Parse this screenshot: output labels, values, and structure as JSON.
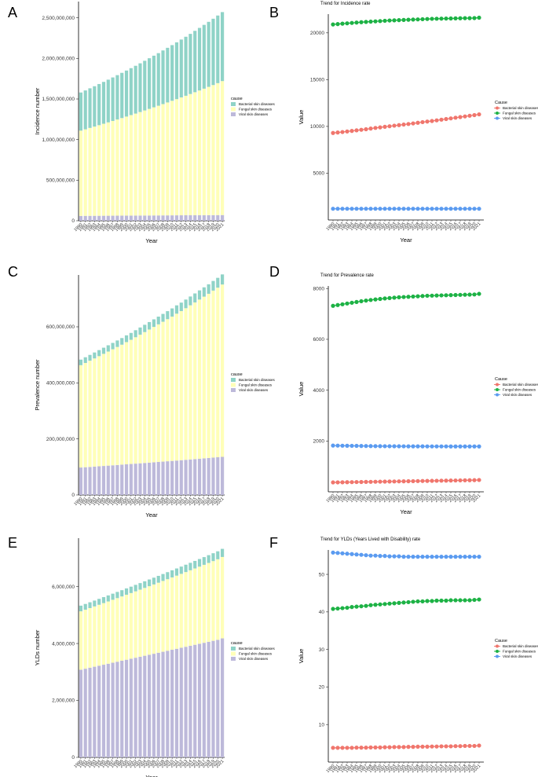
{
  "years": [
    "1990",
    "1991",
    "1992",
    "1993",
    "1994",
    "1995",
    "1996",
    "1997",
    "1998",
    "1999",
    "2000",
    "2001",
    "2002",
    "2003",
    "2004",
    "2005",
    "2006",
    "2007",
    "2008",
    "2009",
    "2010",
    "2011",
    "2012",
    "2013",
    "2014",
    "2015",
    "2016",
    "2017",
    "2018",
    "2019",
    "2020",
    "2021"
  ],
  "colors": {
    "bar": {
      "Bacterial skin diseases": "#8fd3c7",
      "Fungal skin diseases": "#ffffb8",
      "Viral skin diseases": "#bdb9da"
    },
    "line": {
      "Bacterial skin diseases": "#f0766d",
      "Fungal skin diseases": "#1db245",
      "Viral skin diseases": "#5b9bf0"
    }
  },
  "chart_data": [
    {
      "panel": "A",
      "type": "bar",
      "stacked": true,
      "ylabel": "Incidence number",
      "xlabel": "Year",
      "legend_title": "cause",
      "ylim": [
        0,
        2700000000
      ],
      "yticks": [
        0,
        500000000,
        1000000000,
        1500000000,
        2000000000,
        2500000000
      ],
      "ytick_labels": [
        "0",
        "500,000,000",
        "1,000,000,000",
        "1,500,000,000",
        "2,000,000,000",
        "2,500,000,000"
      ],
      "series": [
        {
          "name": "Viral skin diseases",
          "values": [
            60000000,
            60300000,
            60700000,
            61000000,
            61300000,
            61700000,
            62000000,
            62300000,
            62700000,
            63000000,
            63400000,
            63700000,
            64000000,
            64400000,
            64700000,
            65000000,
            65400000,
            65700000,
            66100000,
            66400000,
            66700000,
            67100000,
            67400000,
            67700000,
            68100000,
            68400000,
            68700000,
            69100000,
            69400000,
            69700000,
            70100000,
            70400000
          ]
        },
        {
          "name": "Fungal skin diseases",
          "values": [
            1050000000,
            1066000000,
            1083000000,
            1099000000,
            1116000000,
            1133000000,
            1150000000,
            1167000000,
            1185000000,
            1202000000,
            1220000000,
            1238000000,
            1256000000,
            1275000000,
            1294000000,
            1313000000,
            1332000000,
            1351000000,
            1371000000,
            1391000000,
            1411000000,
            1431000000,
            1452000000,
            1472000000,
            1493000000,
            1515000000,
            1536000000,
            1558000000,
            1580000000,
            1602000000,
            1625000000,
            1650000000
          ]
        },
        {
          "name": "Bacterial skin diseases",
          "values": [
            470000000,
            479000000,
            488000000,
            497000000,
            507000000,
            516000000,
            526000000,
            536000000,
            546000000,
            557000000,
            567000000,
            578000000,
            589000000,
            600000000,
            612000000,
            624000000,
            636000000,
            648000000,
            661000000,
            673000000,
            686000000,
            700000000,
            713000000,
            727000000,
            741000000,
            756000000,
            771000000,
            786000000,
            801000000,
            817000000,
            833000000,
            850000000
          ]
        }
      ]
    },
    {
      "panel": "B",
      "type": "line",
      "title": "Trend for Incidence rate",
      "ylabel": "Value",
      "xlabel": "Year",
      "legend_title": "Cause",
      "ylim": [
        0,
        22000
      ],
      "yticks": [
        5000,
        10000,
        15000,
        20000
      ],
      "ytick_labels": [
        "5000",
        "10000",
        "15000",
        "20000"
      ],
      "series": [
        {
          "name": "Bacterial skin diseases",
          "values": [
            9300,
            9350,
            9400,
            9460,
            9520,
            9580,
            9640,
            9700,
            9770,
            9840,
            9900,
            9960,
            10020,
            10080,
            10140,
            10200,
            10260,
            10320,
            10390,
            10460,
            10520,
            10580,
            10650,
            10720,
            10790,
            10860,
            10930,
            11000,
            11070,
            11140,
            11210,
            11290
          ]
        },
        {
          "name": "Fungal skin diseases",
          "values": [
            20900,
            20940,
            20980,
            21020,
            21060,
            21100,
            21140,
            21170,
            21200,
            21230,
            21260,
            21290,
            21320,
            21340,
            21360,
            21380,
            21400,
            21420,
            21440,
            21460,
            21480,
            21500,
            21510,
            21520,
            21530,
            21540,
            21550,
            21560,
            21570,
            21570,
            21580,
            21620
          ]
        },
        {
          "name": "Viral skin diseases",
          "values": [
            1200,
            1200,
            1200,
            1200,
            1200,
            1200,
            1200,
            1200,
            1200,
            1200,
            1200,
            1200,
            1200,
            1200,
            1200,
            1200,
            1200,
            1200,
            1200,
            1200,
            1200,
            1200,
            1200,
            1200,
            1200,
            1200,
            1200,
            1200,
            1200,
            1200,
            1200,
            1200
          ]
        }
      ]
    },
    {
      "panel": "C",
      "type": "bar",
      "stacked": true,
      "ylabel": "Prevalence number",
      "xlabel": "Year",
      "legend_title": "cause",
      "ylim": [
        0,
        785000000
      ],
      "yticks": [
        0,
        200000000,
        400000000,
        600000000
      ],
      "ytick_labels": [
        "0",
        "200,000,000",
        "400,000,000",
        "600,000,000"
      ],
      "series": [
        {
          "name": "Viral skin diseases",
          "values": [
            98000000,
            99000000,
            100000000,
            101200000,
            102300000,
            103500000,
            104700000,
            105800000,
            107000000,
            108200000,
            109400000,
            110600000,
            111800000,
            113000000,
            114200000,
            115400000,
            116600000,
            117800000,
            119000000,
            120300000,
            121500000,
            122800000,
            124100000,
            125400000,
            126700000,
            128000000,
            129300000,
            130600000,
            131900000,
            133200000,
            134600000,
            136000000
          ]
        },
        {
          "name": "Fungal skin diseases",
          "values": [
            365000000,
            372000000,
            379000000,
            386000000,
            393000000,
            400000000,
            407000000,
            414000000,
            421000000,
            428000000,
            436000000,
            443000000,
            451000000,
            459000000,
            467000000,
            475000000,
            483000000,
            491000000,
            499000000,
            507000000,
            515000000,
            524000000,
            532000000,
            541000000,
            550000000,
            559000000,
            568000000,
            577000000,
            586000000,
            596000000,
            605000000,
            615000000
          ]
        },
        {
          "name": "Bacterial skin diseases",
          "values": [
            20000000,
            20400000,
            20800000,
            21200000,
            21600000,
            22000000,
            22400000,
            22800000,
            23300000,
            23700000,
            24200000,
            24600000,
            25100000,
            25600000,
            26100000,
            26600000,
            27100000,
            27600000,
            28100000,
            28600000,
            29200000,
            29800000,
            30300000,
            30900000,
            31500000,
            32100000,
            32700000,
            33300000,
            33900000,
            34500000,
            35200000,
            36000000
          ]
        }
      ]
    },
    {
      "panel": "D",
      "type": "line",
      "title": "Trend for Prevalence rate",
      "ylabel": "Value",
      "xlabel": "Year",
      "legend_title": "Cause",
      "ylim": [
        0,
        8100
      ],
      "yticks": [
        2000,
        4000,
        6000,
        8000
      ],
      "ytick_labels": [
        "2000",
        "4000",
        "6000",
        "8000"
      ],
      "series": [
        {
          "name": "Bacterial skin diseases",
          "values": [
            370,
            372,
            375,
            378,
            381,
            384,
            387,
            390,
            393,
            396,
            399,
            402,
            405,
            408,
            411,
            414,
            417,
            420,
            423,
            426,
            429,
            432,
            435,
            438,
            441,
            444,
            447,
            450,
            453,
            456,
            459,
            465
          ]
        },
        {
          "name": "Fungal skin diseases",
          "values": [
            7320,
            7350,
            7380,
            7410,
            7440,
            7470,
            7500,
            7525,
            7550,
            7570,
            7590,
            7610,
            7625,
            7640,
            7655,
            7665,
            7675,
            7685,
            7695,
            7705,
            7715,
            7720,
            7725,
            7730,
            7735,
            7740,
            7745,
            7750,
            7755,
            7760,
            7765,
            7790
          ]
        },
        {
          "name": "Viral skin diseases",
          "values": [
            1820,
            1818,
            1815,
            1812,
            1810,
            1808,
            1805,
            1803,
            1800,
            1798,
            1796,
            1795,
            1794,
            1793,
            1792,
            1791,
            1790,
            1790,
            1789,
            1789,
            1788,
            1788,
            1787,
            1787,
            1787,
            1786,
            1786,
            1786,
            1786,
            1786,
            1786,
            1786
          ]
        }
      ]
    },
    {
      "panel": "E",
      "type": "bar",
      "stacked": true,
      "ylabel": "YLDs number",
      "xlabel": "Year",
      "legend_title": "cause",
      "ylim": [
        0,
        7700000
      ],
      "yticks": [
        0,
        2000000,
        4000000,
        6000000
      ],
      "ytick_labels": [
        "0",
        "2,000,000",
        "4,000,000",
        "6,000,000"
      ],
      "series": [
        {
          "name": "Viral skin diseases",
          "values": [
            3080000,
            3115000,
            3150000,
            3185000,
            3220000,
            3255000,
            3290000,
            3325000,
            3360000,
            3395000,
            3430000,
            3465000,
            3500000,
            3535000,
            3570000,
            3605000,
            3640000,
            3675000,
            3710000,
            3745000,
            3780000,
            3815000,
            3850000,
            3885000,
            3920000,
            3955000,
            3990000,
            4025000,
            4060000,
            4095000,
            4130000,
            4180000
          ]
        },
        {
          "name": "Fungal skin diseases",
          "values": [
            2050000,
            2072000,
            2094000,
            2117000,
            2140000,
            2163000,
            2186000,
            2210000,
            2234000,
            2258000,
            2282000,
            2307000,
            2332000,
            2357000,
            2382000,
            2408000,
            2434000,
            2460000,
            2487000,
            2514000,
            2541000,
            2568000,
            2596000,
            2624000,
            2652000,
            2681000,
            2710000,
            2739000,
            2769000,
            2799000,
            2829000,
            2860000
          ]
        },
        {
          "name": "Bacterial skin diseases",
          "values": [
            200000,
            202000,
            204000,
            206000,
            208000,
            211000,
            213000,
            215000,
            218000,
            220000,
            223000,
            225000,
            228000,
            230000,
            233000,
            236000,
            238000,
            241000,
            244000,
            247000,
            250000,
            253000,
            256000,
            259000,
            262000,
            265000,
            268000,
            271000,
            274000,
            277000,
            280000,
            285000
          ]
        }
      ]
    },
    {
      "panel": "F",
      "type": "line",
      "title": "Trend for YLDs (Years Lived with Disability) rate",
      "ylabel": "Value",
      "xlabel": "Year",
      "legend_title": "Cause",
      "ylim": [
        0,
        56.5
      ],
      "yticks": [
        10,
        20,
        30,
        40,
        50
      ],
      "ytick_labels": [
        "10",
        "20",
        "30",
        "40",
        "50"
      ],
      "series": [
        {
          "name": "Bacterial skin diseases",
          "values": [
            3.8,
            3.8,
            3.8,
            3.8,
            3.8,
            3.85,
            3.85,
            3.85,
            3.9,
            3.9,
            3.9,
            3.95,
            3.95,
            4.0,
            4.0,
            4.0,
            4.05,
            4.05,
            4.1,
            4.1,
            4.1,
            4.15,
            4.15,
            4.2,
            4.2,
            4.2,
            4.25,
            4.25,
            4.3,
            4.3,
            4.3,
            4.4
          ]
        },
        {
          "name": "Fungal skin diseases",
          "values": [
            40.8,
            40.9,
            41.0,
            41.1,
            41.3,
            41.4,
            41.5,
            41.6,
            41.8,
            41.9,
            42.0,
            42.1,
            42.2,
            42.3,
            42.4,
            42.5,
            42.6,
            42.7,
            42.8,
            42.8,
            42.9,
            42.9,
            43.0,
            43.0,
            43.0,
            43.1,
            43.1,
            43.1,
            43.1,
            43.1,
            43.2,
            43.3
          ]
        },
        {
          "name": "Viral skin diseases",
          "values": [
            55.8,
            55.7,
            55.6,
            55.5,
            55.4,
            55.3,
            55.2,
            55.1,
            55.0,
            55.0,
            54.9,
            54.9,
            54.8,
            54.8,
            54.8,
            54.7,
            54.7,
            54.7,
            54.7,
            54.7,
            54.7,
            54.7,
            54.7,
            54.7,
            54.7,
            54.7,
            54.7,
            54.7,
            54.7,
            54.7,
            54.7,
            54.7
          ]
        }
      ]
    }
  ]
}
